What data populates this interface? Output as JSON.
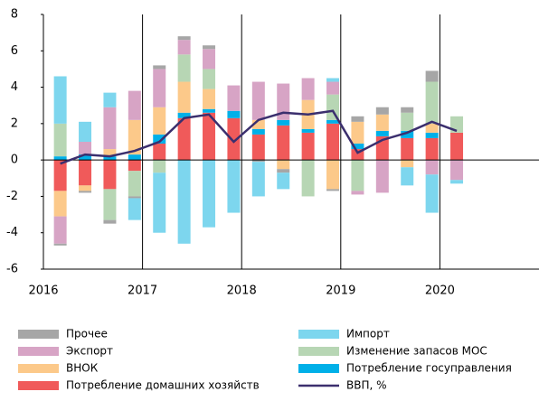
{
  "chart_data": {
    "type": "bar",
    "stacked": true,
    "x": [
      2016.17,
      2016.42,
      2016.67,
      2016.92,
      2017.17,
      2017.42,
      2017.67,
      2017.92,
      2018.17,
      2018.42,
      2018.67,
      2018.92,
      2019.17,
      2019.42,
      2019.67,
      2019.92,
      2020.17
    ],
    "xlim": [
      2016,
      2021
    ],
    "xticks": [
      2016,
      2017,
      2018,
      2019,
      2020
    ],
    "ylim": [
      -6,
      8
    ],
    "yticks": [
      -6,
      -4,
      -2,
      0,
      2,
      4,
      6,
      8
    ],
    "grid": true,
    "legend": "bottom",
    "series": [
      {
        "name": "Потребление домашних хозяйств",
        "color": "#f05a5a",
        "values": [
          -1.7,
          -1.4,
          -1.6,
          -0.6,
          0.9,
          2.3,
          2.6,
          2.3,
          1.4,
          1.9,
          1.5,
          2.0,
          0.6,
          1.3,
          1.2,
          1.2,
          1.5
        ]
      },
      {
        "name": "Потребление госуправления",
        "color": "#00b0e8",
        "values": [
          0.2,
          0.3,
          0.2,
          0.3,
          0.5,
          0.3,
          0.2,
          0.4,
          0.3,
          0.3,
          0.2,
          0.2,
          0.3,
          0.3,
          0.4,
          0.3,
          0
        ]
      },
      {
        "name": "ВНОК",
        "color": "#fcc98a",
        "values": [
          -1.4,
          -0.3,
          0.4,
          1.9,
          1.5,
          1.7,
          1.1,
          0,
          0.5,
          -0.5,
          1.6,
          -1.6,
          1.2,
          0.9,
          -0.4,
          0.5,
          0
        ]
      },
      {
        "name": "Изменение запасов МОС",
        "color": "#b7d6b4",
        "values": [
          1.8,
          0,
          -1.7,
          -1.4,
          -0.7,
          1.5,
          1.1,
          0,
          0,
          0,
          -2.0,
          1.4,
          -1.7,
          0,
          1.0,
          2.3,
          0.9
        ]
      },
      {
        "name": "Экспорт",
        "color": "#d7a4c5",
        "values": [
          -1.5,
          0.7,
          2.3,
          1.6,
          2.1,
          0.8,
          1.1,
          1.4,
          2.1,
          2.0,
          1.2,
          0.7,
          -0.2,
          -1.8,
          0,
          -0.8,
          -1.1
        ]
      },
      {
        "name": "Прочее",
        "color": "#a6a6a6",
        "values": [
          -0.1,
          -0.1,
          -0.2,
          -0.1,
          0.2,
          0.2,
          0.2,
          0,
          -0.1,
          -0.2,
          0,
          -0.1,
          0.3,
          0.4,
          0.3,
          0.6,
          0
        ]
      },
      {
        "name": "Импорт",
        "color": "#7dd6ee",
        "values": [
          2.6,
          1.1,
          0.8,
          -1.2,
          -3.3,
          -4.6,
          -3.7,
          -2.9,
          -1.9,
          -0.9,
          0,
          0.2,
          0,
          0,
          -1.0,
          -2.1,
          -0.2
        ]
      },
      {
        "name": "ВВП, %",
        "color": "#3b2f6e",
        "type": "line",
        "values": [
          -0.2,
          0.3,
          0.2,
          0.5,
          1.0,
          2.3,
          2.5,
          1.0,
          2.2,
          2.6,
          2.5,
          2.7,
          0.4,
          1.1,
          1.5,
          2.1,
          1.6
        ]
      }
    ]
  }
}
